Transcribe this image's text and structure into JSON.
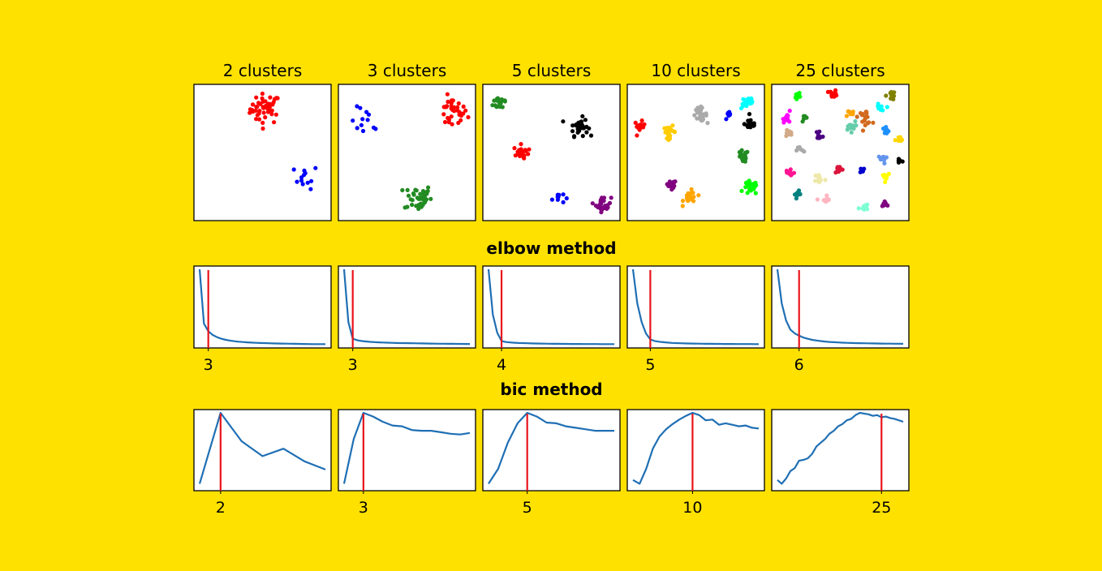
{
  "colors": {
    "background": "#FFE100",
    "curve": "#1f6fb4",
    "marker": "#e8141b",
    "palette": [
      "#ff0000",
      "#0000ff",
      "#228b22",
      "#000000",
      "#ffa500",
      "#800080",
      "#aaaaaa",
      "#00ffff",
      "#00ff00",
      "#ff00ff",
      "#d2aa88",
      "#ff1493",
      "#66cdaa",
      "#1e90ff",
      "#6495ed",
      "#ffff00",
      "#ffb6c1",
      "#eee8aa",
      "#808000",
      "#d2691e",
      "#008080",
      "#4b0082",
      "#7fffd4",
      "#4169e1",
      "#dc143c"
    ]
  },
  "chart_data": [
    {
      "type": "scatter",
      "title": "2 clusters",
      "clusters": [
        {
          "cx": 0.52,
          "cy": 0.82,
          "r": 0.1,
          "n": 45,
          "color": "#ff0000"
        },
        {
          "cx": 0.82,
          "cy": 0.32,
          "r": 0.08,
          "n": 12,
          "color": "#0000ff"
        }
      ]
    },
    {
      "type": "scatter",
      "title": "3 clusters",
      "clusters": [
        {
          "cx": 0.83,
          "cy": 0.79,
          "r": 0.1,
          "n": 35,
          "color": "#ff0000"
        },
        {
          "cx": 0.2,
          "cy": 0.72,
          "r": 0.1,
          "n": 12,
          "color": "#0000ff"
        },
        {
          "cx": 0.58,
          "cy": 0.17,
          "r": 0.09,
          "n": 40,
          "color": "#228b22"
        }
      ]
    },
    {
      "type": "scatter",
      "title": "5 clusters",
      "clusters": [
        {
          "cx": 0.13,
          "cy": 0.87,
          "r": 0.05,
          "n": 20,
          "color": "#228b22"
        },
        {
          "cx": 0.7,
          "cy": 0.69,
          "r": 0.06,
          "n": 35,
          "color": "#000000"
        },
        {
          "cx": 0.28,
          "cy": 0.5,
          "r": 0.05,
          "n": 20,
          "color": "#ff0000"
        },
        {
          "cx": 0.55,
          "cy": 0.17,
          "r": 0.04,
          "n": 10,
          "color": "#0000ff"
        },
        {
          "cx": 0.88,
          "cy": 0.12,
          "r": 0.05,
          "n": 30,
          "color": "#800080"
        }
      ]
    },
    {
      "type": "scatter",
      "title": "10 clusters",
      "clusters": [
        {
          "cx": 0.09,
          "cy": 0.69,
          "r": 0.035,
          "n": 15,
          "color": "#ff0000"
        },
        {
          "cx": 0.31,
          "cy": 0.65,
          "r": 0.04,
          "n": 20,
          "color": "#ffcc00"
        },
        {
          "cx": 0.53,
          "cy": 0.78,
          "r": 0.045,
          "n": 25,
          "color": "#aaaaaa"
        },
        {
          "cx": 0.74,
          "cy": 0.77,
          "r": 0.025,
          "n": 10,
          "color": "#0000ff"
        },
        {
          "cx": 0.88,
          "cy": 0.87,
          "r": 0.045,
          "n": 25,
          "color": "#00ffff"
        },
        {
          "cx": 0.9,
          "cy": 0.71,
          "r": 0.04,
          "n": 20,
          "color": "#000000"
        },
        {
          "cx": 0.84,
          "cy": 0.47,
          "r": 0.04,
          "n": 20,
          "color": "#228b22"
        },
        {
          "cx": 0.9,
          "cy": 0.24,
          "r": 0.045,
          "n": 25,
          "color": "#00ff00"
        },
        {
          "cx": 0.32,
          "cy": 0.26,
          "r": 0.035,
          "n": 15,
          "color": "#800080"
        },
        {
          "cx": 0.46,
          "cy": 0.17,
          "r": 0.045,
          "n": 20,
          "color": "#ffa500"
        }
      ]
    },
    {
      "type": "scatter",
      "title": "25 clusters",
      "clusters": [
        {
          "cx": 0.2,
          "cy": 0.92,
          "r": 0.03,
          "n": 10,
          "color": "#00ff00"
        },
        {
          "cx": 0.45,
          "cy": 0.93,
          "r": 0.025,
          "n": 10,
          "color": "#ff0000"
        },
        {
          "cx": 0.87,
          "cy": 0.92,
          "r": 0.03,
          "n": 12,
          "color": "#808000"
        },
        {
          "cx": 0.12,
          "cy": 0.76,
          "r": 0.035,
          "n": 12,
          "color": "#ff00ff"
        },
        {
          "cx": 0.24,
          "cy": 0.75,
          "r": 0.02,
          "n": 6,
          "color": "#228b22"
        },
        {
          "cx": 0.57,
          "cy": 0.79,
          "r": 0.03,
          "n": 10,
          "color": "#ffa500"
        },
        {
          "cx": 0.68,
          "cy": 0.76,
          "r": 0.045,
          "n": 18,
          "color": "#d2691e"
        },
        {
          "cx": 0.79,
          "cy": 0.82,
          "r": 0.03,
          "n": 10,
          "color": "#00ffff"
        },
        {
          "cx": 0.12,
          "cy": 0.64,
          "r": 0.03,
          "n": 10,
          "color": "#d2aa88"
        },
        {
          "cx": 0.35,
          "cy": 0.63,
          "r": 0.025,
          "n": 8,
          "color": "#4b0082"
        },
        {
          "cx": 0.57,
          "cy": 0.69,
          "r": 0.035,
          "n": 12,
          "color": "#66cdaa"
        },
        {
          "cx": 0.83,
          "cy": 0.66,
          "r": 0.03,
          "n": 12,
          "color": "#1e90ff"
        },
        {
          "cx": 0.93,
          "cy": 0.59,
          "r": 0.025,
          "n": 8,
          "color": "#ffd700"
        },
        {
          "cx": 0.21,
          "cy": 0.52,
          "r": 0.025,
          "n": 8,
          "color": "#aaaaaa"
        },
        {
          "cx": 0.81,
          "cy": 0.45,
          "r": 0.03,
          "n": 10,
          "color": "#6495ed"
        },
        {
          "cx": 0.93,
          "cy": 0.44,
          "r": 0.025,
          "n": 8,
          "color": "#000000"
        },
        {
          "cx": 0.13,
          "cy": 0.35,
          "r": 0.035,
          "n": 12,
          "color": "#ff1493"
        },
        {
          "cx": 0.35,
          "cy": 0.31,
          "r": 0.035,
          "n": 12,
          "color": "#eee8aa"
        },
        {
          "cx": 0.49,
          "cy": 0.38,
          "r": 0.03,
          "n": 10,
          "color": "#dc143c"
        },
        {
          "cx": 0.66,
          "cy": 0.37,
          "r": 0.02,
          "n": 6,
          "color": "#0000cd"
        },
        {
          "cx": 0.83,
          "cy": 0.33,
          "r": 0.03,
          "n": 10,
          "color": "#ffff00"
        },
        {
          "cx": 0.2,
          "cy": 0.19,
          "r": 0.03,
          "n": 10,
          "color": "#008080"
        },
        {
          "cx": 0.39,
          "cy": 0.15,
          "r": 0.035,
          "n": 10,
          "color": "#ffb6c1"
        },
        {
          "cx": 0.67,
          "cy": 0.1,
          "r": 0.03,
          "n": 10,
          "color": "#7fffd4"
        },
        {
          "cx": 0.83,
          "cy": 0.13,
          "r": 0.025,
          "n": 8,
          "color": "#800080"
        }
      ]
    }
  ],
  "elbow_method": {
    "title": "elbow method",
    "plots": [
      {
        "type": "line",
        "k_min": 1,
        "k_max": 30,
        "y": [
          1.0,
          0.28,
          0.18,
          0.13,
          0.1,
          0.08,
          0.065,
          0.055,
          0.046,
          0.04,
          0.035,
          0.031,
          0.028,
          0.025,
          0.023,
          0.021,
          0.019,
          0.017,
          0.016,
          0.015,
          0.014,
          0.013,
          0.012,
          0.011,
          0.01,
          0.009,
          0.008,
          0.008,
          0.007,
          0.007
        ],
        "selected": 3,
        "tick_label": "3"
      },
      {
        "type": "line",
        "k_min": 1,
        "k_max": 30,
        "y": [
          1.0,
          0.3,
          0.08,
          0.06,
          0.05,
          0.043,
          0.038,
          0.034,
          0.031,
          0.029,
          0.027,
          0.025,
          0.023,
          0.022,
          0.021,
          0.02,
          0.019,
          0.018,
          0.017,
          0.016,
          0.015,
          0.014,
          0.013,
          0.013,
          0.012,
          0.012,
          0.011,
          0.011,
          0.01,
          0.01
        ],
        "selected": 3,
        "tick_label": "3"
      },
      {
        "type": "line",
        "k_min": 1,
        "k_max": 30,
        "y": [
          1.0,
          0.4,
          0.16,
          0.05,
          0.035,
          0.03,
          0.026,
          0.023,
          0.021,
          0.019,
          0.017,
          0.016,
          0.015,
          0.014,
          0.013,
          0.012,
          0.012,
          0.011,
          0.011,
          0.01,
          0.01,
          0.01,
          0.009,
          0.009,
          0.009,
          0.009,
          0.008,
          0.008,
          0.008,
          0.008
        ],
        "selected": 4,
        "tick_label": "4"
      },
      {
        "type": "line",
        "k_min": 1,
        "k_max": 30,
        "y": [
          1.0,
          0.55,
          0.3,
          0.15,
          0.07,
          0.05,
          0.04,
          0.033,
          0.028,
          0.024,
          0.021,
          0.019,
          0.017,
          0.016,
          0.015,
          0.014,
          0.013,
          0.012,
          0.012,
          0.011,
          0.011,
          0.01,
          0.01,
          0.01,
          0.009,
          0.009,
          0.009,
          0.009,
          0.008,
          0.008
        ],
        "selected": 5,
        "tick_label": "5"
      },
      {
        "type": "line",
        "k_min": 1,
        "k_max": 30,
        "y": [
          1.0,
          0.55,
          0.32,
          0.2,
          0.15,
          0.12,
          0.095,
          0.078,
          0.065,
          0.056,
          0.048,
          0.042,
          0.037,
          0.033,
          0.03,
          0.027,
          0.025,
          0.023,
          0.021,
          0.02,
          0.019,
          0.018,
          0.017,
          0.016,
          0.015,
          0.014,
          0.014,
          0.013,
          0.013,
          0.012
        ],
        "selected": 6,
        "tick_label": "6"
      }
    ]
  },
  "bic_method": {
    "title": "bic method",
    "plots": [
      {
        "type": "line",
        "k_min": 1,
        "k_max": 7,
        "y": [
          0.05,
          1.0,
          0.62,
          0.42,
          0.52,
          0.35,
          0.24
        ],
        "selected": 2,
        "tick_label": "2"
      },
      {
        "type": "line",
        "k_min": 1,
        "k_max": 14,
        "y": [
          0.05,
          0.65,
          1.0,
          0.95,
          0.88,
          0.83,
          0.82,
          0.77,
          0.76,
          0.76,
          0.74,
          0.72,
          0.71,
          0.73
        ],
        "selected": 3,
        "tick_label": "3"
      },
      {
        "type": "line",
        "k_min": 1,
        "k_max": 14,
        "y": [
          0.05,
          0.25,
          0.6,
          0.86,
          1.0,
          0.95,
          0.87,
          0.86,
          0.82,
          0.8,
          0.78,
          0.76,
          0.76,
          0.76
        ],
        "selected": 5,
        "tick_label": "5"
      },
      {
        "type": "line",
        "k_min": 1,
        "k_max": 20,
        "y": [
          0.1,
          0.05,
          0.25,
          0.52,
          0.68,
          0.78,
          0.85,
          0.91,
          0.96,
          1.0,
          0.97,
          0.9,
          0.91,
          0.84,
          0.86,
          0.84,
          0.82,
          0.83,
          0.8,
          0.79
        ],
        "selected": 10,
        "tick_label": "10"
      },
      {
        "type": "line",
        "k_min": 1,
        "k_max": 30,
        "y": [
          0.1,
          0.05,
          0.12,
          0.22,
          0.26,
          0.36,
          0.37,
          0.39,
          0.45,
          0.55,
          0.6,
          0.65,
          0.72,
          0.76,
          0.82,
          0.85,
          0.9,
          0.92,
          0.97,
          1.0,
          0.99,
          0.98,
          0.96,
          0.97,
          0.94,
          0.95,
          0.93,
          0.92,
          0.9,
          0.88
        ],
        "selected": 25,
        "tick_label": "25"
      }
    ]
  }
}
